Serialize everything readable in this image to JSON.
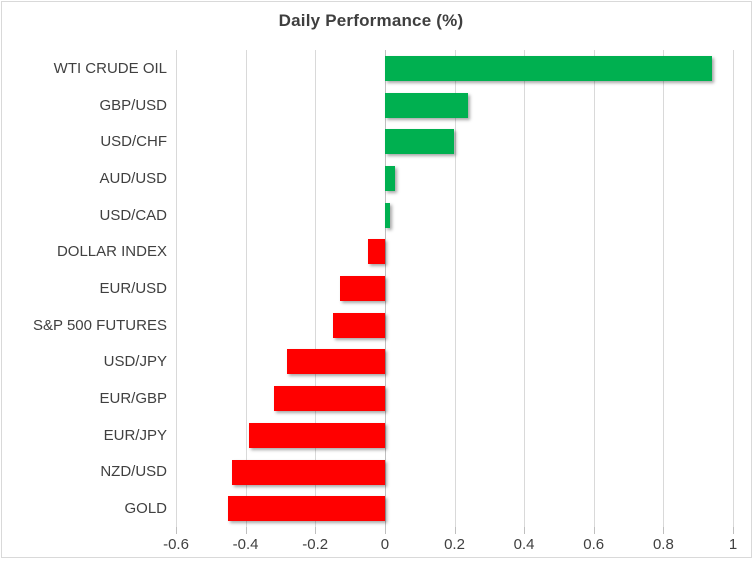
{
  "chart_data": {
    "type": "bar",
    "orientation": "horizontal",
    "title": "Daily Performance (%)",
    "categories": [
      "WTI CRUDE OIL",
      "GBP/USD",
      "USD/CHF",
      "AUD/USD",
      "USD/CAD",
      "DOLLAR INDEX",
      "EUR/USD",
      "S&P 500 FUTURES",
      "USD/JPY",
      "EUR/GBP",
      "EUR/JPY",
      "NZD/USD",
      "GOLD"
    ],
    "values": [
      0.94,
      0.24,
      0.2,
      0.03,
      0.015,
      -0.05,
      -0.13,
      -0.15,
      -0.28,
      -0.32,
      -0.39,
      -0.44,
      -0.45
    ],
    "xlim": [
      -0.6,
      1.0
    ],
    "x_ticks": [
      -0.6,
      -0.4,
      -0.2,
      0,
      0.2,
      0.4,
      0.6,
      0.8,
      1
    ],
    "x_tick_labels": [
      "-0.6",
      "-0.4",
      "-0.2",
      "0",
      "0.2",
      "0.4",
      "0.6",
      "0.8",
      "1"
    ],
    "grid": true,
    "legend": false,
    "xlabel": "",
    "ylabel": "",
    "colors": {
      "positive": "#00B050",
      "negative": "#FF0000",
      "gridline": "#D9D9D9",
      "axis_line": "#BFBFBF",
      "label_text": "#404040",
      "title_text": "#3F3F3F"
    }
  }
}
